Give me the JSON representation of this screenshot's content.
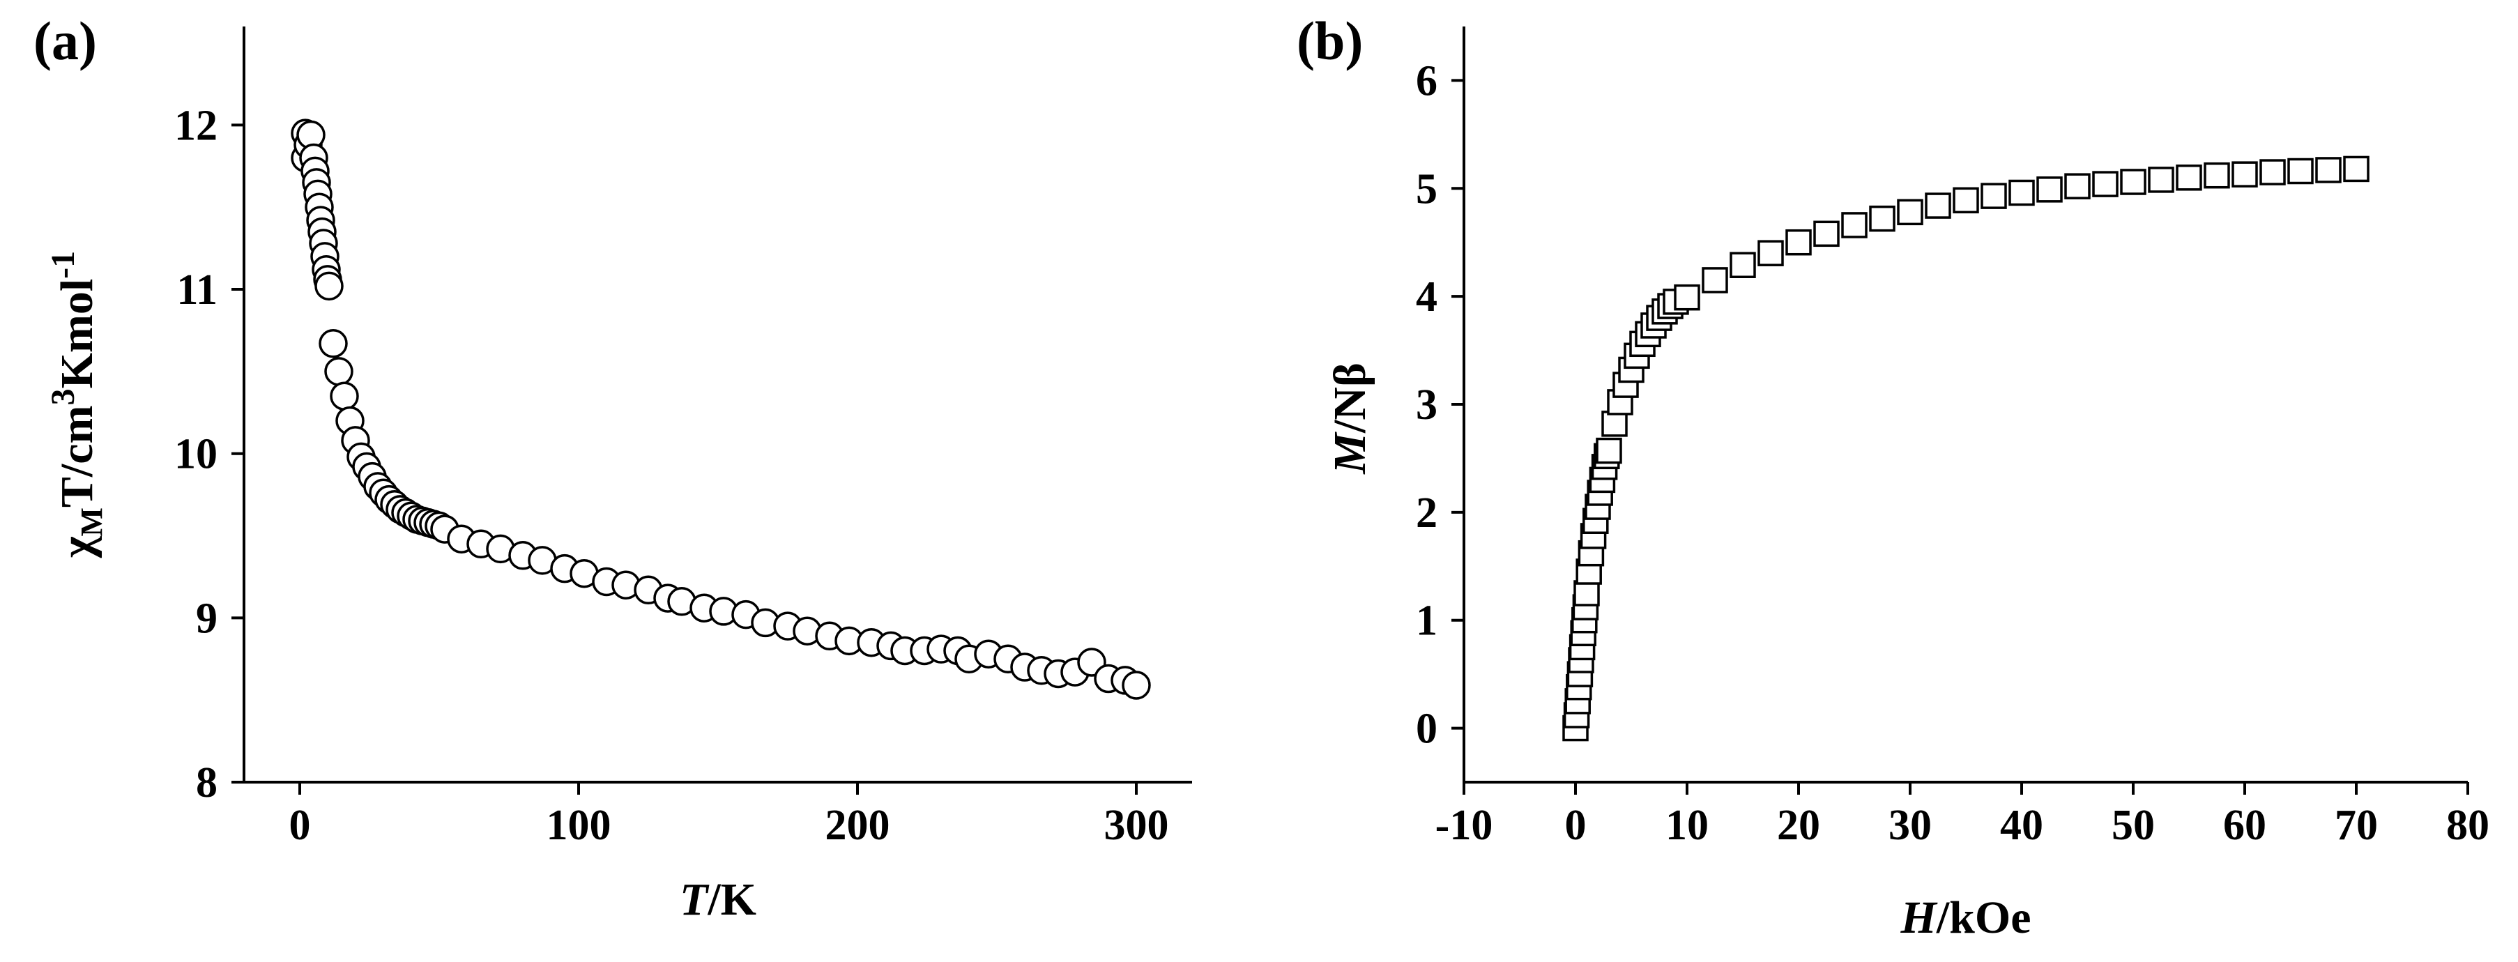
{
  "chart_data": [
    {
      "panel_label": "(a)",
      "type": "scatter",
      "marker": "open-circle",
      "xlabel": {
        "italic": "T",
        "plain": "/K"
      },
      "ylabel": {
        "prefix": "χ",
        "sub": "M",
        "mid": "T/cm",
        "sup1": "3",
        "mid2": "Kmol",
        "sup2": "-1"
      },
      "xlim": [
        -20,
        320
      ],
      "ylim": [
        8,
        12.6
      ],
      "xticks": [
        0,
        100,
        200,
        300
      ],
      "yticks": [
        8,
        9,
        10,
        11,
        12
      ],
      "xtick_labels": [
        "0",
        "100",
        "200",
        "300"
      ],
      "ytick_labels": [
        "8",
        "9",
        "10",
        "11",
        "12"
      ],
      "points": [
        [
          2,
          11.8
        ],
        [
          2,
          11.95
        ],
        [
          3,
          11.88
        ],
        [
          4,
          11.94
        ],
        [
          5,
          11.8
        ],
        [
          5.5,
          11.72
        ],
        [
          6,
          11.65
        ],
        [
          6.5,
          11.58
        ],
        [
          7,
          11.5
        ],
        [
          7.5,
          11.42
        ],
        [
          8,
          11.35
        ],
        [
          8.5,
          11.28
        ],
        [
          9,
          11.2
        ],
        [
          9.5,
          11.12
        ],
        [
          10,
          11.06
        ],
        [
          10.5,
          11.02
        ],
        [
          12,
          10.67
        ],
        [
          14,
          10.5
        ],
        [
          16,
          10.35
        ],
        [
          18,
          10.2
        ],
        [
          20,
          10.08
        ],
        [
          22,
          9.98
        ],
        [
          24,
          9.92
        ],
        [
          26,
          9.86
        ],
        [
          28,
          9.8
        ],
        [
          30,
          9.76
        ],
        [
          32,
          9.72
        ],
        [
          34,
          9.69
        ],
        [
          36,
          9.66
        ],
        [
          38,
          9.64
        ],
        [
          40,
          9.62
        ],
        [
          42,
          9.6
        ],
        [
          44,
          9.59
        ],
        [
          46,
          9.58
        ],
        [
          48,
          9.57
        ],
        [
          50,
          9.56
        ],
        [
          52,
          9.54
        ],
        [
          58,
          9.48
        ],
        [
          65,
          9.45
        ],
        [
          72,
          9.42
        ],
        [
          80,
          9.38
        ],
        [
          87,
          9.35
        ],
        [
          95,
          9.3
        ],
        [
          102,
          9.27
        ],
        [
          110,
          9.22
        ],
        [
          117,
          9.2
        ],
        [
          125,
          9.17
        ],
        [
          132,
          9.12
        ],
        [
          137,
          9.1
        ],
        [
          145,
          9.06
        ],
        [
          152,
          9.04
        ],
        [
          160,
          9.02
        ],
        [
          167,
          8.97
        ],
        [
          175,
          8.95
        ],
        [
          182,
          8.92
        ],
        [
          190,
          8.89
        ],
        [
          197,
          8.86
        ],
        [
          205,
          8.85
        ],
        [
          212,
          8.83
        ],
        [
          217,
          8.8
        ],
        [
          224,
          8.8
        ],
        [
          230,
          8.81
        ],
        [
          236,
          8.8
        ],
        [
          240,
          8.75
        ],
        [
          247,
          8.78
        ],
        [
          254,
          8.75
        ],
        [
          260,
          8.7
        ],
        [
          266,
          8.68
        ],
        [
          272,
          8.66
        ],
        [
          278,
          8.67
        ],
        [
          284,
          8.73
        ],
        [
          290,
          8.63
        ],
        [
          296,
          8.62
        ],
        [
          300,
          8.59
        ]
      ]
    },
    {
      "panel_label": "(b)",
      "type": "scatter",
      "marker": "open-square",
      "xlabel": {
        "italic": "H",
        "plain": "/kOe"
      },
      "ylabel": {
        "italic": "M",
        "plain": "/Nβ"
      },
      "xlim": [
        -10,
        80
      ],
      "ylim": [
        -0.5,
        6.5
      ],
      "xticks": [
        -10,
        0,
        10,
        20,
        30,
        40,
        50,
        60,
        70,
        80
      ],
      "yticks": [
        0,
        1,
        2,
        3,
        4,
        5,
        6
      ],
      "xtick_labels": [
        "-10",
        "0",
        "10",
        "20",
        "30",
        "40",
        "50",
        "60",
        "70",
        "80"
      ],
      "ytick_labels": [
        "0",
        "1",
        "2",
        "3",
        "4",
        "5",
        "6"
      ],
      "points": [
        [
          0,
          0
        ],
        [
          0.1,
          0.12
        ],
        [
          0.2,
          0.25
        ],
        [
          0.3,
          0.38
        ],
        [
          0.4,
          0.5
        ],
        [
          0.5,
          0.63
        ],
        [
          0.6,
          0.75
        ],
        [
          0.7,
          0.88
        ],
        [
          0.8,
          1.0
        ],
        [
          0.9,
          1.12
        ],
        [
          1.0,
          1.25
        ],
        [
          1.2,
          1.45
        ],
        [
          1.4,
          1.62
        ],
        [
          1.6,
          1.78
        ],
        [
          1.8,
          1.92
        ],
        [
          2.0,
          2.05
        ],
        [
          2.2,
          2.18
        ],
        [
          2.4,
          2.3
        ],
        [
          2.6,
          2.42
        ],
        [
          2.8,
          2.52
        ],
        [
          3.0,
          2.57
        ],
        [
          3.5,
          2.82
        ],
        [
          4.0,
          3.02
        ],
        [
          4.5,
          3.18
        ],
        [
          5.0,
          3.32
        ],
        [
          5.5,
          3.45
        ],
        [
          6.0,
          3.56
        ],
        [
          6.5,
          3.65
        ],
        [
          7.0,
          3.73
        ],
        [
          7.5,
          3.8
        ],
        [
          8.0,
          3.86
        ],
        [
          8.5,
          3.91
        ],
        [
          9.0,
          3.95
        ],
        [
          10.0,
          3.99
        ],
        [
          12.5,
          4.15
        ],
        [
          15,
          4.29
        ],
        [
          17.5,
          4.4
        ],
        [
          20,
          4.5
        ],
        [
          22.5,
          4.58
        ],
        [
          25,
          4.66
        ],
        [
          27.5,
          4.72
        ],
        [
          30,
          4.78
        ],
        [
          32.5,
          4.84
        ],
        [
          35,
          4.89
        ],
        [
          37.5,
          4.93
        ],
        [
          40,
          4.96
        ],
        [
          42.5,
          4.99
        ],
        [
          45,
          5.02
        ],
        [
          47.5,
          5.04
        ],
        [
          50,
          5.06
        ],
        [
          52.5,
          5.08
        ],
        [
          55,
          5.1
        ],
        [
          57.5,
          5.12
        ],
        [
          60,
          5.13
        ],
        [
          62.5,
          5.15
        ],
        [
          65,
          5.16
        ],
        [
          67.5,
          5.17
        ],
        [
          70,
          5.18
        ]
      ]
    }
  ]
}
